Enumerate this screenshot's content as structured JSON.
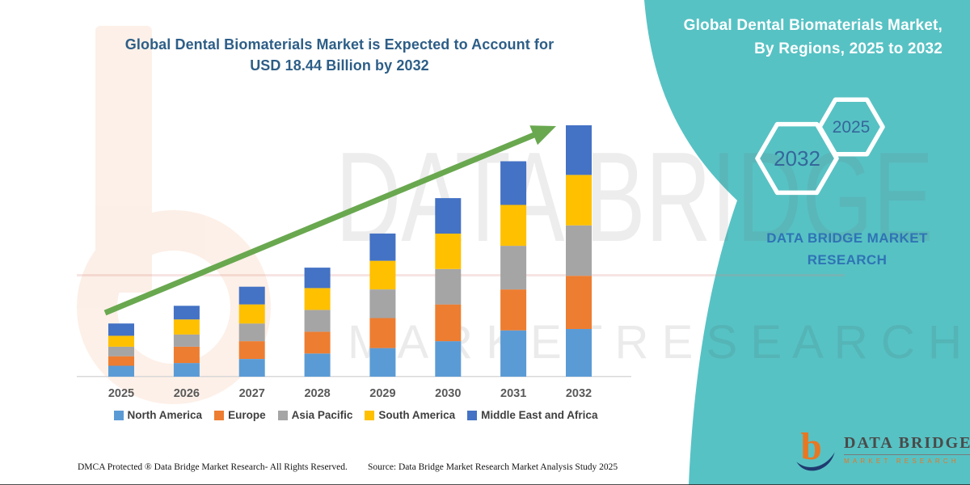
{
  "header": {
    "title_line1": "Global Dental Biomaterials Market is Expected to Account for",
    "title_line2": "USD 18.44 Billion by 2032"
  },
  "side_panel": {
    "heading_line1": "Global Dental Biomaterials Market,",
    "heading_line2": "By Regions, 2025 to 2032",
    "hexagons": [
      {
        "label": "2032"
      },
      {
        "label": "2025"
      }
    ],
    "brand_line1": "DATA BRIDGE MARKET",
    "brand_line2": "RESEARCH"
  },
  "watermark": {
    "line1": "DATA BRIDGE",
    "line2": "M A R K E T    R E S E A R C H"
  },
  "logo": {
    "glyph": "data-bridge-b-logo",
    "name": "DATA BRIDGE",
    "tagline": "MARKET RESEARCH"
  },
  "footer": {
    "left": "DMCA Protected ® Data Bridge Market Research-  All Rights Reserved.",
    "right": "Source: Data Bridge Market Research  Market Analysis Study 2025"
  },
  "colors": {
    "teal_panel": "#57c2c4",
    "title_blue": "#2d5e87",
    "hex_year_blue": "#35679b",
    "brand_blue": "#2e74b5",
    "arrow_green": "#69a84f",
    "axis_label_gray": "#595959",
    "legend_text": "#3f3f3f",
    "logo_orange": "#e87722",
    "logo_navy": "#1f3b70"
  },
  "chart_data": {
    "type": "bar",
    "stacked": true,
    "title": "Global Dental Biomaterials Market is Expected to Account for USD 18.44 Billion by 2032",
    "unit": "USD Billion",
    "categories": [
      "2025",
      "2026",
      "2027",
      "2028",
      "2029",
      "2030",
      "2031",
      "2032"
    ],
    "series": [
      {
        "name": "North America",
        "color": "#5b9bd5",
        "values": [
          0.8,
          1.0,
          1.3,
          1.7,
          2.1,
          2.6,
          3.4,
          3.5
        ]
      },
      {
        "name": "Europe",
        "color": "#ed7d31",
        "values": [
          0.7,
          1.2,
          1.3,
          1.6,
          2.2,
          2.7,
          3.0,
          3.9
        ]
      },
      {
        "name": "Asia Pacific",
        "color": "#a5a5a5",
        "values": [
          0.7,
          0.9,
          1.3,
          1.6,
          2.1,
          2.6,
          3.2,
          3.7
        ]
      },
      {
        "name": "South America",
        "color": "#ffc000",
        "values": [
          0.8,
          1.1,
          1.4,
          1.6,
          2.1,
          2.6,
          3.0,
          3.7
        ]
      },
      {
        "name": "Middle East and Africa",
        "color": "#4472c4",
        "values": [
          0.9,
          1.0,
          1.3,
          1.5,
          2.0,
          2.6,
          3.2,
          3.64
        ]
      }
    ],
    "totals": [
      3.9,
      5.2,
      6.6,
      8.0,
      10.5,
      13.1,
      15.8,
      18.44
    ],
    "highlight_value": "USD 18.44 Billion by 2032",
    "trend_arrow": true,
    "legend_position": "bottom",
    "y_axis_visible": false,
    "gridlines": false
  }
}
